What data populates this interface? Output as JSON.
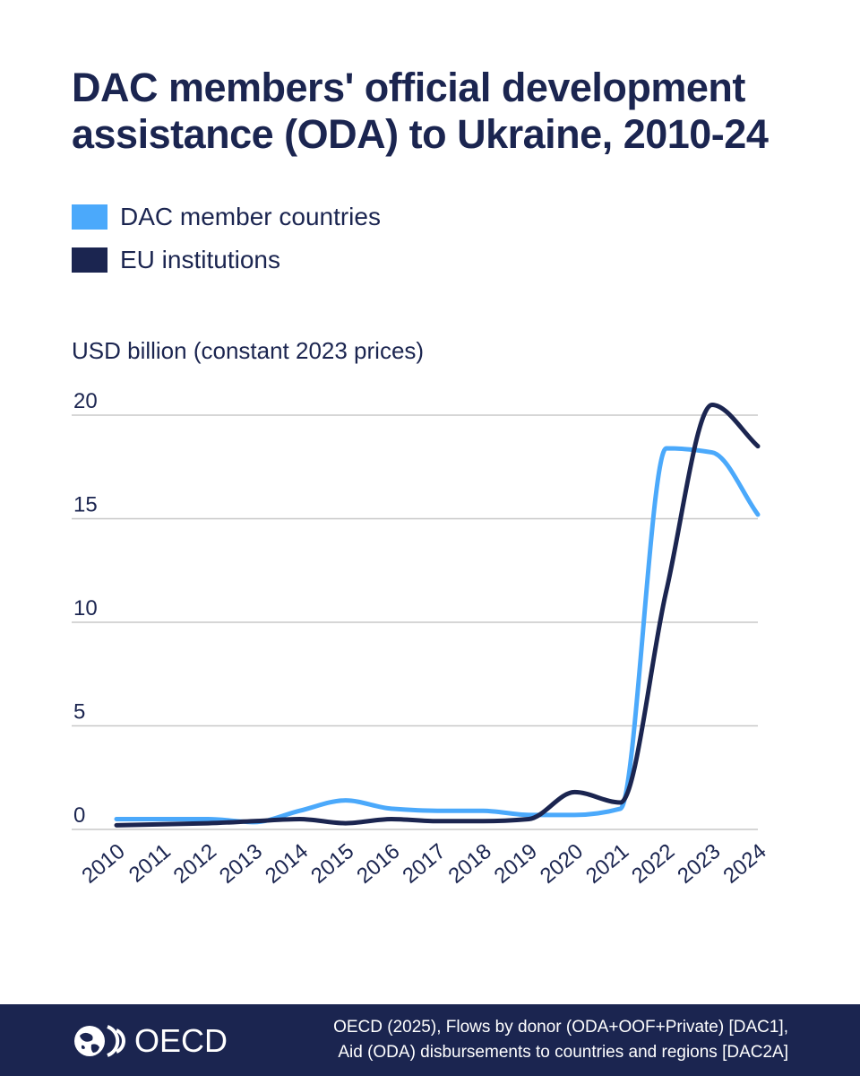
{
  "header": {
    "title": "DAC members' official development assistance (ODA) to Ukraine, 2010-24"
  },
  "colors": {
    "dac": "#4ba9fb",
    "eu": "#1b2550",
    "grid": "#c8c8c8",
    "footer_bg": "#1b2550"
  },
  "footer": {
    "brand": "OECD",
    "source_line1": "OECD (2025), Flows by donor (ODA+OOF+Private) [DAC1],",
    "source_line2": "Aid (ODA) disbursements to countries and regions [DAC2A]"
  },
  "chart_data": {
    "type": "line",
    "title": "DAC members' official development assistance (ODA) to Ukraine, 2010-24",
    "ylabel": "USD billion (constant 2023 prices)",
    "xlabel": "",
    "ylim": [
      0,
      20
    ],
    "yticks": [
      0,
      5,
      10,
      15,
      20
    ],
    "grid": true,
    "legend_position": "top-left",
    "x": [
      "2010",
      "2011",
      "2012",
      "2013",
      "2014",
      "2015",
      "2016",
      "2017",
      "2018",
      "2019",
      "2020",
      "2021",
      "2022",
      "2023",
      "2024"
    ],
    "series": [
      {
        "name": "DAC member countries",
        "color": "#4ba9fb",
        "values": [
          0.5,
          0.5,
          0.5,
          0.35,
          0.9,
          1.4,
          1.0,
          0.9,
          0.9,
          0.7,
          0.7,
          1.0,
          18.4,
          18.2,
          15.2
        ]
      },
      {
        "name": "EU institutions",
        "color": "#1b2550",
        "values": [
          0.2,
          0.25,
          0.3,
          0.4,
          0.5,
          0.3,
          0.5,
          0.4,
          0.4,
          0.5,
          1.8,
          1.3,
          11.5,
          20.5,
          18.5
        ]
      }
    ]
  }
}
